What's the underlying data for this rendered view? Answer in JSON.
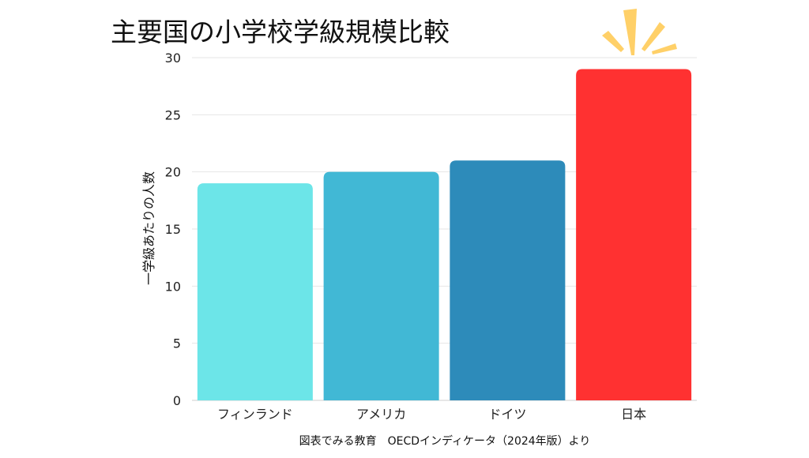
{
  "title": "主要国の小学校学級規模比較",
  "source": "図表でみる教育　OECDインディケータ（2024年版）より",
  "chart_data": {
    "type": "bar",
    "title": "主要国の小学校学級規模比較",
    "xlabel": "",
    "ylabel": "一学級あたりの人数",
    "ylim": [
      0,
      30
    ],
    "yticks": [
      "0",
      "5",
      "10",
      "15",
      "20",
      "25",
      "30"
    ],
    "categories": [
      "フィンランド",
      "アメリカ",
      "ドイツ",
      "日本"
    ],
    "values": [
      19,
      20,
      21,
      29
    ],
    "colors": [
      "#6ce5e8",
      "#41b8d5",
      "#2d8bba",
      "#ff3131"
    ],
    "grid": true,
    "legend": "none"
  },
  "decoration": {
    "burst_icon": "highlight-burst-icon",
    "burst_color": "#ffd068"
  }
}
